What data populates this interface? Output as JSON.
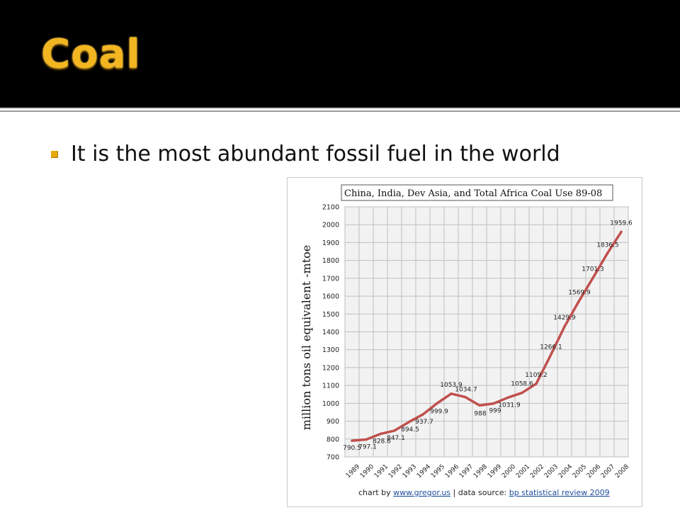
{
  "slide": {
    "title": "Coal",
    "bullet": "It is the most abundant fossil fuel in the world"
  },
  "colors": {
    "title": "#f3b621",
    "bullet": "#e8a80c",
    "line": "#c0504d",
    "grid": "#bfbfbf"
  },
  "chart_data": {
    "type": "line",
    "title": "China, India, Dev Asia, and Total Africa Coal Use 89-08",
    "ylabel": "million tons oil equivalent -mtoe",
    "xlabel": "",
    "x": [
      "1989",
      "1990",
      "1991",
      "1992",
      "1993",
      "1994",
      "1995",
      "1996",
      "1997",
      "1998",
      "1999",
      "2000",
      "2001",
      "2002",
      "2003",
      "2004",
      "2005",
      "2006",
      "2007",
      "2008"
    ],
    "series": [
      {
        "values": [
          790.5,
          797.1,
          828.6,
          847.1,
          894.5,
          937.7,
          999.9,
          1053.9,
          1034.7,
          988,
          999,
          1031.9,
          1058.6,
          1109.2,
          1266.1,
          1429.9,
          1569.9,
          1701.3,
          1836.5,
          1959.6
        ],
        "labels": [
          "790.5",
          "797.1",
          "828.6",
          "847.1",
          "894.5",
          "937.7",
          "999.9",
          "1053.9",
          "1034.7",
          "988",
          "999",
          "1031.9",
          "1058.6",
          "1109.2",
          "1266.1",
          "1429.9",
          "1569.9",
          "1701.3",
          "1836.5",
          "1959.6"
        ]
      }
    ],
    "ylim": [
      700,
      2100
    ],
    "yticks": [
      "700",
      "800",
      "900",
      "1000",
      "1100",
      "1200",
      "1300",
      "1400",
      "1500",
      "1600",
      "1700",
      "1800",
      "1900",
      "2000",
      "2100"
    ],
    "grid": true,
    "footer": {
      "prefix": "chart by ",
      "site": "www.gregor.us",
      "separator": "  |  data source: ",
      "source": "bp statistical review 2009"
    }
  }
}
